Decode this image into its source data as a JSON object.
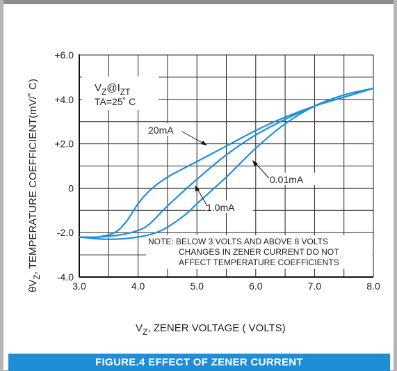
{
  "chart_data": {
    "type": "line",
    "xlabel": "V",
    "xlabel_sub": "Z",
    "xlabel_rest": ", ZENER VOLTAGE ( VOLTS)",
    "ylabel_theta": "θV",
    "ylabel_sub": "Z",
    "ylabel_rest": ",  TEMPERATURE COEFFICIENT(mV/˚ C)",
    "xlim": [
      3.0,
      8.0
    ],
    "ylim": [
      -4.0,
      6.0
    ],
    "x_ticks": [
      3.0,
      4.0,
      5.0,
      6.0,
      7.0,
      8.0
    ],
    "x_tick_labels": [
      "3.0",
      "4.0",
      "5.0",
      "6.0",
      "7.0",
      "8.0"
    ],
    "y_ticks": [
      -4.0,
      -2.0,
      0,
      2.0,
      4.0,
      6.0
    ],
    "y_tick_labels": [
      "-4.0",
      "-2.0",
      "0",
      "+2.0",
      "+4.0",
      "+6.0"
    ],
    "grid": true,
    "line_color": "#1e90d8",
    "series": [
      {
        "name": "20mA",
        "x": [
          3.0,
          3.3,
          3.6,
          3.8,
          4.0,
          4.2,
          4.5,
          5.0,
          5.5,
          6.0,
          6.5,
          7.0,
          7.5,
          8.0
        ],
        "y": [
          -2.2,
          -2.2,
          -2.0,
          -1.5,
          -0.7,
          -0.1,
          0.5,
          1.2,
          1.9,
          2.6,
          3.2,
          3.7,
          4.1,
          4.5
        ]
      },
      {
        "name": "1.0mA",
        "x": [
          3.0,
          3.3,
          3.7,
          4.0,
          4.2,
          4.5,
          5.0,
          5.5,
          6.0,
          6.5,
          7.0,
          7.5,
          8.0
        ],
        "y": [
          -2.2,
          -2.2,
          -2.1,
          -1.9,
          -1.6,
          -0.8,
          0.4,
          1.5,
          2.4,
          3.1,
          3.7,
          4.1,
          4.5
        ]
      },
      {
        "name": "0.01mA",
        "x": [
          3.0,
          3.5,
          4.0,
          4.4,
          4.8,
          5.0,
          5.5,
          6.0,
          6.5,
          7.0,
          7.5,
          8.0
        ],
        "y": [
          -2.2,
          -2.3,
          -2.2,
          -1.9,
          -1.2,
          -0.7,
          0.5,
          1.8,
          2.9,
          3.7,
          4.2,
          4.5
        ]
      }
    ],
    "annotations": {
      "box_line1": "V",
      "box_line1_sub": "Z",
      "box_line1_mid": "@I",
      "box_line1_sub2": "ZT",
      "box_line2": "TA=25˚ C",
      "label_20mA": "20mA",
      "label_1mA": "1.0mA",
      "label_001mA": "0.01mA",
      "note_line1": "NOTE: BELOW 3 VOLTS AND ABOVE 8 VOLTS",
      "note_line2": "CHANGES IN ZENER CURRENT DO NOT",
      "note_line3": "AFFECT TEMPERATURE COEFFICIENTS"
    }
  },
  "caption": "FIGURE.4 EFFECT OF ZENER CURRENT"
}
